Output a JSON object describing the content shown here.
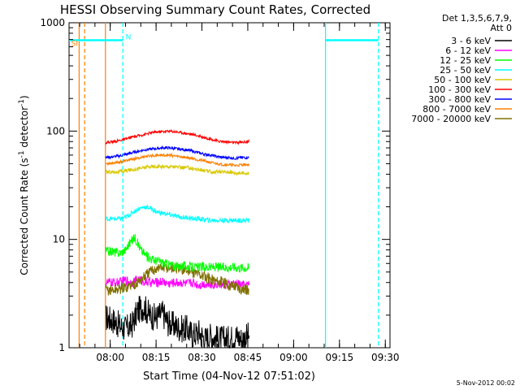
{
  "chart_data": {
    "type": "line",
    "title": "HESSI Observing Summary Count Rates, Corrected",
    "xlabel": "Start Time (04-Nov-12 07:51:02)",
    "ylabel_main": "Corrected Count Rate (s",
    "ylabel_sup1": "-1",
    "ylabel_mid": " detector",
    "ylabel_sup2": "-1",
    "ylabel_end": ")",
    "x_unit": "minutes after 07:51:02 UT, 04-Nov-12",
    "xlim": [
      -4.5,
      100.5
    ],
    "ylim": [
      1,
      1000
    ],
    "yscale": "log",
    "x_ticks": [
      {
        "v": 8.97,
        "label": "08:00"
      },
      {
        "v": 23.97,
        "label": "08:15"
      },
      {
        "v": 38.97,
        "label": "08:30"
      },
      {
        "v": 53.97,
        "label": "08:45"
      },
      {
        "v": 68.97,
        "label": "09:00"
      },
      {
        "v": 83.97,
        "label": "09:15"
      },
      {
        "v": 98.97,
        "label": "09:30"
      }
    ],
    "y_ticks": [
      {
        "v": 1,
        "label": "1"
      },
      {
        "v": 10,
        "label": "10"
      },
      {
        "v": 100,
        "label": "100"
      },
      {
        "v": 1000,
        "label": "1000"
      }
    ],
    "legend_header": [
      "Det 1,3,5,6,7,9,",
      "Att 0"
    ],
    "legend_position": "right",
    "data_start_min": 7.5,
    "data_end_min": 54.5,
    "series": [
      {
        "name": "3 - 6 keV",
        "color": "#000000",
        "values": [
          [
            7.5,
            1.9
          ],
          [
            10,
            1.8
          ],
          [
            12,
            1.6
          ],
          [
            14,
            1.5
          ],
          [
            16,
            1.6
          ],
          [
            18,
            2.2
          ],
          [
            20,
            2.4
          ],
          [
            22,
            2.0
          ],
          [
            24,
            1.9
          ],
          [
            26,
            2.1
          ],
          [
            28,
            1.7
          ],
          [
            30,
            1.6
          ],
          [
            32,
            1.5
          ],
          [
            34,
            1.5
          ],
          [
            36,
            1.3
          ],
          [
            38,
            1.4
          ],
          [
            40,
            1.2
          ],
          [
            42,
            1.3
          ],
          [
            44,
            1.2
          ],
          [
            46,
            1.2
          ],
          [
            48,
            1.2
          ],
          [
            50,
            1.3
          ],
          [
            52,
            1.2
          ],
          [
            54.5,
            1.3
          ]
        ]
      },
      {
        "name": "6 - 12 keV",
        "color": "#ff00ff",
        "values": [
          [
            7.5,
            4.0
          ],
          [
            10,
            4.0
          ],
          [
            12,
            4.0
          ],
          [
            14,
            4.2
          ],
          [
            16,
            4.0
          ],
          [
            18,
            4.3
          ],
          [
            20,
            4.1
          ],
          [
            22,
            4.0
          ],
          [
            24,
            4.0
          ],
          [
            26,
            4.1
          ],
          [
            28,
            3.9
          ],
          [
            30,
            4.0
          ],
          [
            32,
            4.0
          ],
          [
            34,
            3.9
          ],
          [
            36,
            4.0
          ],
          [
            38,
            3.8
          ],
          [
            40,
            3.9
          ],
          [
            42,
            3.8
          ],
          [
            44,
            3.9
          ],
          [
            46,
            3.8
          ],
          [
            48,
            3.8
          ],
          [
            50,
            3.9
          ],
          [
            52,
            3.8
          ],
          [
            54.5,
            3.8
          ]
        ]
      },
      {
        "name": "12 - 25 keV",
        "color": "#00ff00",
        "values": [
          [
            7.5,
            7.8
          ],
          [
            10,
            7.7
          ],
          [
            12,
            7.5
          ],
          [
            14,
            8.0
          ],
          [
            15,
            9.0
          ],
          [
            17,
            10.5
          ],
          [
            19,
            8.0
          ],
          [
            21,
            7.0
          ],
          [
            23,
            6.5
          ],
          [
            25,
            6.3
          ],
          [
            27,
            6.0
          ],
          [
            29,
            5.8
          ],
          [
            31,
            5.6
          ],
          [
            33,
            5.7
          ],
          [
            35,
            5.6
          ],
          [
            37,
            5.5
          ],
          [
            39,
            5.6
          ],
          [
            41,
            5.5
          ],
          [
            43,
            5.6
          ],
          [
            45,
            5.5
          ],
          [
            47,
            5.5
          ],
          [
            49,
            5.6
          ],
          [
            51,
            5.5
          ],
          [
            54.5,
            5.5
          ]
        ]
      },
      {
        "name": "25 - 50 keV",
        "color": "#00ffff",
        "values": [
          [
            7.5,
            15.5
          ],
          [
            10,
            15.5
          ],
          [
            12,
            15.5
          ],
          [
            14,
            16.0
          ],
          [
            16,
            17.5
          ],
          [
            18,
            19.0
          ],
          [
            20,
            20.0
          ],
          [
            22,
            19.5
          ],
          [
            24,
            18.0
          ],
          [
            26,
            17.5
          ],
          [
            28,
            17.0
          ],
          [
            30,
            16.5
          ],
          [
            32,
            16.0
          ],
          [
            34,
            16.0
          ],
          [
            36,
            15.5
          ],
          [
            38,
            15.5
          ],
          [
            40,
            15.2
          ],
          [
            42,
            15.0
          ],
          [
            44,
            15.0
          ],
          [
            46,
            15.0
          ],
          [
            48,
            15.0
          ],
          [
            50,
            15.0
          ],
          [
            52,
            15.0
          ],
          [
            54.5,
            15.0
          ]
        ]
      },
      {
        "name": "50 - 100 keV",
        "color": "#d8c800",
        "values": [
          [
            7.5,
            42
          ],
          [
            10,
            42
          ],
          [
            12,
            42
          ],
          [
            14,
            43
          ],
          [
            16,
            44
          ],
          [
            18,
            45
          ],
          [
            20,
            46
          ],
          [
            22,
            47
          ],
          [
            24,
            47
          ],
          [
            26,
            47
          ],
          [
            28,
            47
          ],
          [
            30,
            47
          ],
          [
            32,
            46
          ],
          [
            34,
            46
          ],
          [
            36,
            45
          ],
          [
            38,
            44
          ],
          [
            40,
            43
          ],
          [
            42,
            42
          ],
          [
            44,
            42
          ],
          [
            46,
            42
          ],
          [
            48,
            42
          ],
          [
            50,
            41
          ],
          [
            52,
            41
          ],
          [
            54.5,
            41
          ]
        ]
      },
      {
        "name": "100 - 300 keV",
        "color": "#ff0000",
        "values": [
          [
            7.5,
            78
          ],
          [
            10,
            80
          ],
          [
            12,
            82
          ],
          [
            14,
            84
          ],
          [
            16,
            88
          ],
          [
            18,
            90
          ],
          [
            20,
            93
          ],
          [
            22,
            96
          ],
          [
            24,
            98
          ],
          [
            26,
            99
          ],
          [
            28,
            100
          ],
          [
            30,
            99
          ],
          [
            32,
            97
          ],
          [
            34,
            95
          ],
          [
            36,
            93
          ],
          [
            38,
            90
          ],
          [
            40,
            87
          ],
          [
            42,
            84
          ],
          [
            44,
            81
          ],
          [
            46,
            80
          ],
          [
            48,
            79
          ],
          [
            50,
            78
          ],
          [
            52,
            79
          ],
          [
            54.5,
            80
          ]
        ]
      },
      {
        "name": "300 - 800 keV",
        "color": "#0000ff",
        "values": [
          [
            7.5,
            57
          ],
          [
            10,
            58
          ],
          [
            12,
            59
          ],
          [
            14,
            61
          ],
          [
            16,
            63
          ],
          [
            18,
            65
          ],
          [
            20,
            67
          ],
          [
            22,
            68
          ],
          [
            24,
            69
          ],
          [
            26,
            70
          ],
          [
            28,
            70
          ],
          [
            30,
            69
          ],
          [
            32,
            68
          ],
          [
            34,
            67
          ],
          [
            36,
            65
          ],
          [
            38,
            63
          ],
          [
            40,
            61
          ],
          [
            42,
            60
          ],
          [
            44,
            58
          ],
          [
            46,
            57
          ],
          [
            48,
            57
          ],
          [
            50,
            56
          ],
          [
            52,
            57
          ],
          [
            54.5,
            57
          ]
        ]
      },
      {
        "name": "800 - 7000 keV",
        "color": "#ff8000",
        "values": [
          [
            7.5,
            50
          ],
          [
            10,
            51
          ],
          [
            12,
            52
          ],
          [
            14,
            53
          ],
          [
            16,
            55
          ],
          [
            18,
            56
          ],
          [
            20,
            58
          ],
          [
            22,
            59
          ],
          [
            24,
            60
          ],
          [
            26,
            60
          ],
          [
            28,
            60
          ],
          [
            30,
            59
          ],
          [
            32,
            58
          ],
          [
            34,
            57
          ],
          [
            36,
            56
          ],
          [
            38,
            54
          ],
          [
            40,
            53
          ],
          [
            42,
            51
          ],
          [
            44,
            50
          ],
          [
            46,
            49
          ],
          [
            48,
            49
          ],
          [
            50,
            48
          ],
          [
            52,
            49
          ],
          [
            54.5,
            49
          ]
        ]
      },
      {
        "name": "7000 - 20000 keV",
        "color": "#807000",
        "values": [
          [
            7.5,
            3.4
          ],
          [
            10,
            3.4
          ],
          [
            12,
            3.5
          ],
          [
            14,
            3.6
          ],
          [
            16,
            3.8
          ],
          [
            18,
            4.0
          ],
          [
            20,
            4.5
          ],
          [
            22,
            5.0
          ],
          [
            24,
            5.4
          ],
          [
            26,
            5.5
          ],
          [
            28,
            5.5
          ],
          [
            30,
            5.4
          ],
          [
            32,
            5.3
          ],
          [
            34,
            5.2
          ],
          [
            36,
            5.0
          ],
          [
            38,
            4.8
          ],
          [
            40,
            4.5
          ],
          [
            42,
            4.3
          ],
          [
            44,
            4.1
          ],
          [
            46,
            4.0
          ],
          [
            48,
            3.8
          ],
          [
            50,
            3.7
          ],
          [
            52,
            3.5
          ],
          [
            54.5,
            3.4
          ]
        ]
      }
    ],
    "markers": [
      {
        "name": "att-state-line",
        "color": "#ff8000",
        "style": "solid",
        "x": -1.2
      },
      {
        "name": "att-state-line-2",
        "color": "#ff8000",
        "style": "dashed",
        "x": 0.6
      },
      {
        "name": "data-start-line",
        "color": "#ff8000",
        "style": "solid",
        "x": 7.4
      },
      {
        "name": "night-start-line",
        "color": "#00ffff",
        "style": "dashed",
        "x": 13.1
      },
      {
        "name": "night-end-line",
        "color": "#00ffff",
        "style": "solid",
        "x": 79.4
      },
      {
        "name": "saa-end-line",
        "color": "#00ffff",
        "style": "dashed",
        "x": 96.7
      }
    ],
    "segments": [
      {
        "name": "night-bar-left",
        "color": "#00ffff",
        "x0": -4.5,
        "x1": 13.1,
        "y": 690
      },
      {
        "name": "night-bar-right",
        "color": "#00ffff",
        "x0": 79.4,
        "x1": 96.7,
        "y": 690
      }
    ],
    "flags": [
      {
        "text": "SI",
        "color": "#ff8000",
        "x": -3.8,
        "y": 610
      },
      {
        "text": "N",
        "color": "#00ffff",
        "x": 14.0,
        "y": 700
      }
    ]
  },
  "footer": {
    "timestamp": "5-Nov-2012 00:02"
  }
}
